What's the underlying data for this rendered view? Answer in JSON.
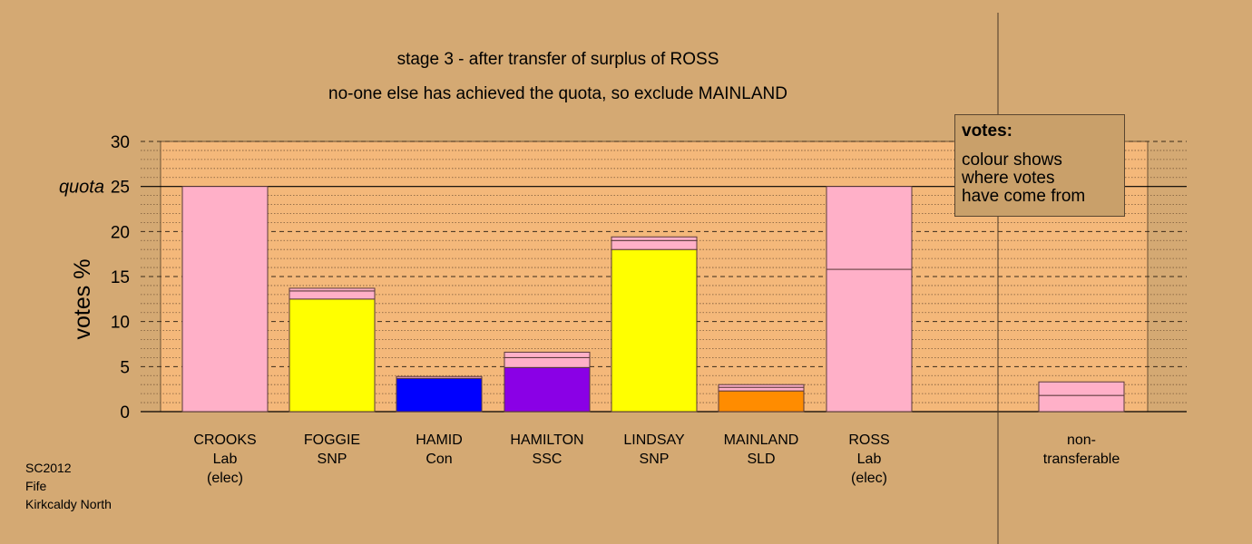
{
  "title": "stage 3 - after transfer of surplus of ROSS",
  "subtitle": "no-one else has achieved the quota, so exclude MAINLAND",
  "legend": {
    "heading": "votes:",
    "body": "colour shows\nwhere votes\nhave come from"
  },
  "footer": [
    "SC2012",
    "Fife",
    "Kirkcaldy North"
  ],
  "colors": {
    "background": "#d4a973",
    "plot_area": "#f4b87a",
    "Lab": "#ffb0c8",
    "SNP": "#ffff00",
    "Con": "#0000ff",
    "SSC": "#8a00e6",
    "SLD": "#ff8c00"
  },
  "chart_data": {
    "type": "bar",
    "stacked": true,
    "ylabel": "votes %",
    "ylim": [
      0,
      30
    ],
    "yticks": [
      0,
      5,
      10,
      15,
      20,
      25,
      30
    ],
    "quota": 25,
    "quota_label": "quota",
    "grid": true,
    "legend_position": "top-right",
    "categories": [
      {
        "name": "CROOKS",
        "party": "Lab",
        "note": "(elec)"
      },
      {
        "name": "FOGGIE",
        "party": "SNP",
        "note": ""
      },
      {
        "name": "HAMID",
        "party": "Con",
        "note": ""
      },
      {
        "name": "HAMILTON",
        "party": "SSC",
        "note": ""
      },
      {
        "name": "LINDSAY",
        "party": "SNP",
        "note": ""
      },
      {
        "name": "MAINLAND",
        "party": "SLD",
        "note": ""
      },
      {
        "name": "ROSS",
        "party": "Lab",
        "note": "(elec)"
      },
      {
        "name": "non-",
        "party": "transferable",
        "note": ""
      }
    ],
    "segments": [
      [
        {
          "from": "Lab",
          "value": 25.0
        }
      ],
      [
        {
          "from": "SNP",
          "value": 12.5
        },
        {
          "from": "Lab",
          "value": 0.9
        },
        {
          "from": "Lab",
          "value": 0.3
        }
      ],
      [
        {
          "from": "Con",
          "value": 3.7
        },
        {
          "from": "Lab",
          "value": 0.2
        }
      ],
      [
        {
          "from": "SSC",
          "value": 4.9
        },
        {
          "from": "Lab",
          "value": 1.1
        },
        {
          "from": "Lab",
          "value": 0.6
        }
      ],
      [
        {
          "from": "SNP",
          "value": 18.0
        },
        {
          "from": "Lab",
          "value": 1.0
        },
        {
          "from": "Lab",
          "value": 0.4
        }
      ],
      [
        {
          "from": "SLD",
          "value": 2.3
        },
        {
          "from": "Lab",
          "value": 0.4
        },
        {
          "from": "Lab",
          "value": 0.3
        }
      ],
      [
        {
          "from": "Lab",
          "value": 15.8
        },
        {
          "from": "Lab",
          "value": 9.2
        }
      ],
      [
        {
          "from": "Lab",
          "value": 1.8
        },
        {
          "from": "Lab",
          "value": 1.5
        }
      ]
    ]
  }
}
